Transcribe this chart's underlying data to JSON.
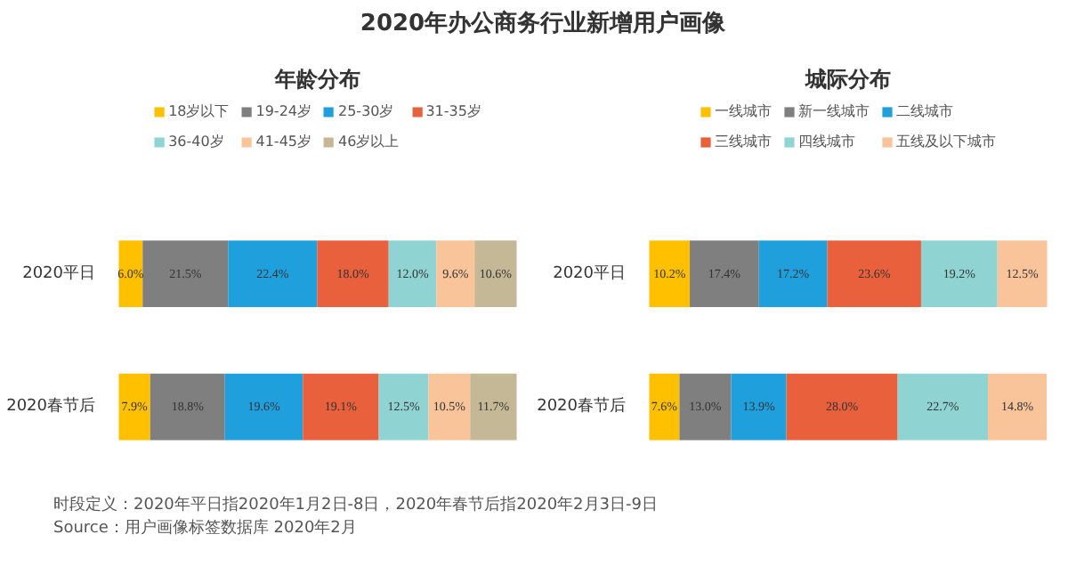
{
  "chart_data": [
    {
      "type": "other",
      "title": "2020年办公商务行业新增用户画像",
      "annotations": [
        "时段定义：2020年平日指2020年1月2日-8日，2020年春节后指2020年2月3日-9日",
        "Source：用户画像标签数据库 2020年2月"
      ]
    },
    {
      "type": "bar",
      "title": "年龄分布",
      "orientation": "horizontal",
      "stacked": true,
      "categories": [
        "2020平日",
        "2020春节后"
      ],
      "tick_labels": "y",
      "legend": "top",
      "series": [
        {
          "name": "18岁以下",
          "color": "#ffc000",
          "values": [
            6.0,
            7.9
          ],
          "value_labels": [
            "6.0%",
            "7.9%"
          ]
        },
        {
          "name": "19-24岁",
          "color": "#7f7f7f",
          "values": [
            21.5,
            18.8
          ],
          "value_labels": [
            "21.5%",
            "18.8%"
          ]
        },
        {
          "name": "25-30岁",
          "color": "#1fa0dc",
          "values": [
            22.4,
            19.6
          ],
          "value_labels": [
            "22.4%",
            "19.6%"
          ]
        },
        {
          "name": "31-35岁",
          "color": "#e8603c",
          "values": [
            18.0,
            19.1
          ],
          "value_labels": [
            "18.0%",
            "19.1%"
          ]
        },
        {
          "name": "36-40岁",
          "color": "#8fd3d3",
          "values": [
            12.0,
            12.5
          ],
          "value_labels": [
            "12.0%",
            "12.5%"
          ]
        },
        {
          "name": "41-45岁",
          "color": "#f9c49a",
          "values": [
            9.6,
            10.5
          ],
          "value_labels": [
            "9.6%",
            "10.5%"
          ]
        },
        {
          "name": "46岁以上",
          "color": "#c4b896",
          "values": [
            10.6,
            11.7
          ],
          "value_labels": [
            "10.6%",
            "11.7%"
          ]
        }
      ]
    },
    {
      "type": "bar",
      "title": "城际分布",
      "orientation": "horizontal",
      "stacked": true,
      "categories": [
        "2020平日",
        "2020春节后"
      ],
      "tick_labels": "y",
      "legend": "top",
      "series": [
        {
          "name": "一线城市",
          "color": "#ffc000",
          "values": [
            10.2,
            7.6
          ],
          "value_labels": [
            "10.2%",
            "7.6%"
          ]
        },
        {
          "name": "新一线城市",
          "color": "#7f7f7f",
          "values": [
            17.4,
            13.0
          ],
          "value_labels": [
            "17.4%",
            "13.0%"
          ]
        },
        {
          "name": "二线城市",
          "color": "#1fa0dc",
          "values": [
            17.2,
            13.9
          ],
          "value_labels": [
            "17.2%",
            "13.9%"
          ]
        },
        {
          "name": "三线城市",
          "color": "#e8603c",
          "values": [
            23.6,
            28.0
          ],
          "value_labels": [
            "23.6%",
            "28.0%"
          ]
        },
        {
          "name": "四线城市",
          "color": "#8fd3d3",
          "values": [
            19.2,
            22.7
          ],
          "value_labels": [
            "19.2%",
            "22.7%"
          ]
        },
        {
          "name": "五线及以下城市",
          "color": "#f9c49a",
          "values": [
            12.5,
            14.8
          ],
          "value_labels": [
            "12.5%",
            "14.8%"
          ]
        }
      ]
    }
  ]
}
